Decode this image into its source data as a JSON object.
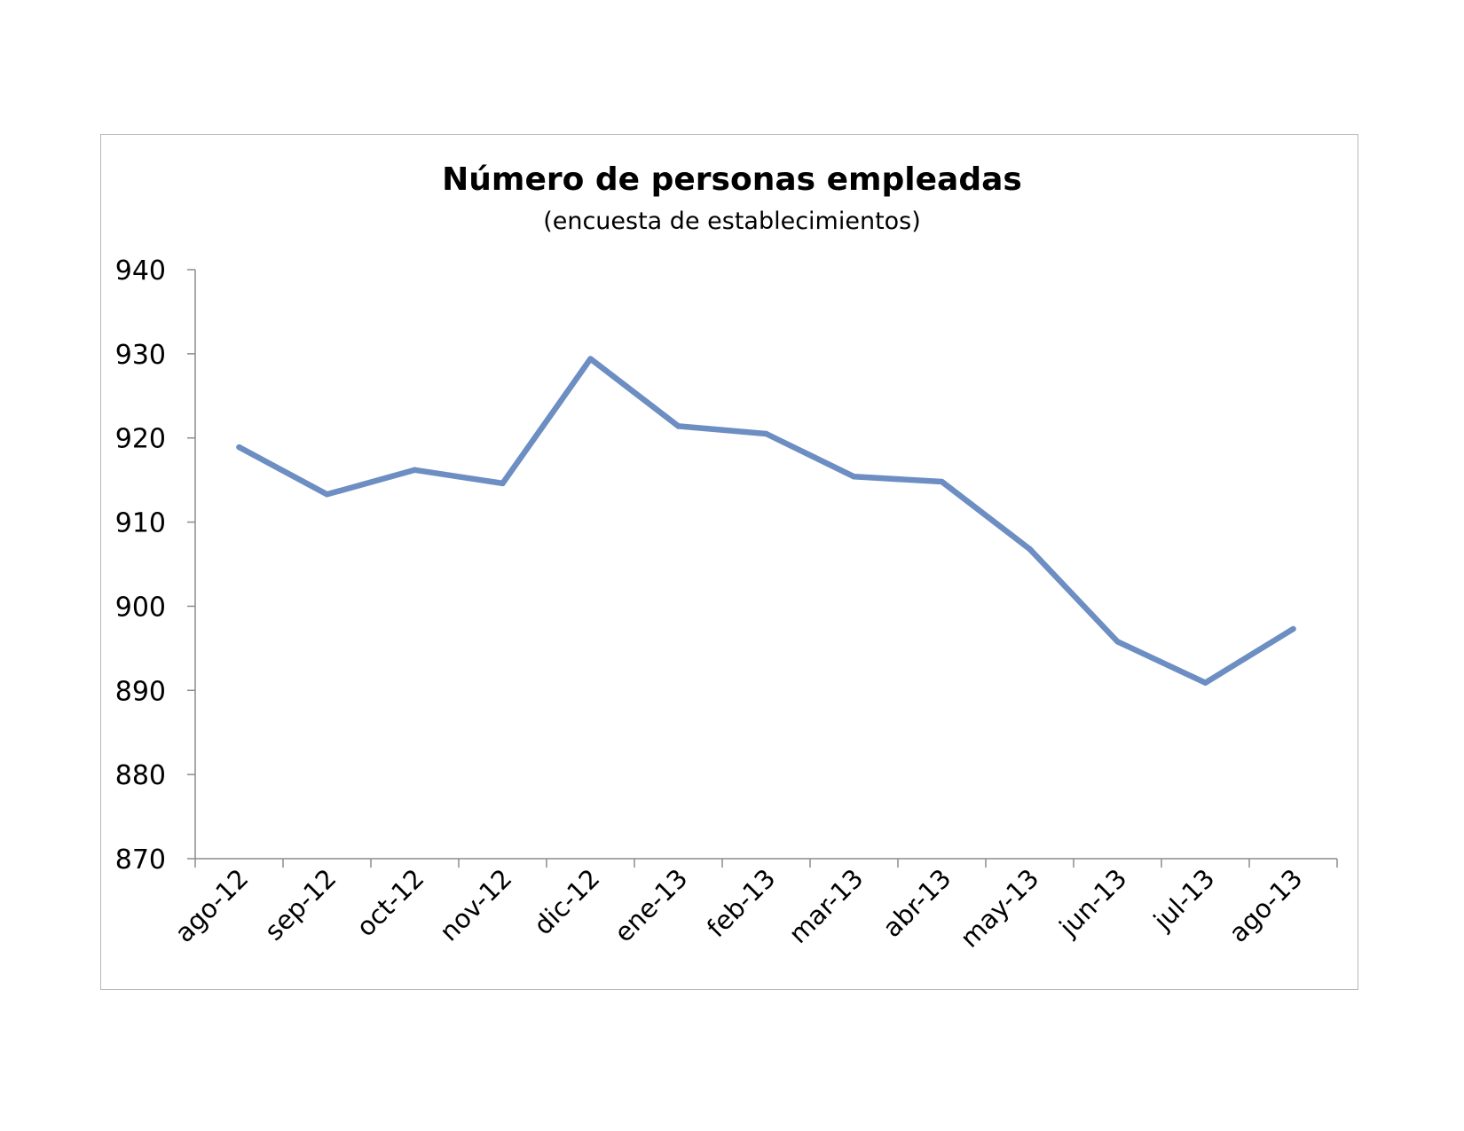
{
  "chart_data": {
    "type": "line",
    "title": "Número de personas empleadas",
    "subtitle": "(encuesta de establecimientos)",
    "xlabel": "",
    "ylabel": "",
    "categories": [
      "ago-12",
      "sep-12",
      "oct-12",
      "nov-12",
      "dic-12",
      "ene-13",
      "feb-13",
      "mar-13",
      "abr-13",
      "may-13",
      "jun-13",
      "jul-13",
      "ago-13"
    ],
    "series": [
      {
        "values": [
          918.9,
          913.3,
          916.2,
          914.6,
          929.4,
          921.4,
          920.5,
          915.4,
          914.8,
          906.8,
          895.8,
          890.9,
          897.3
        ]
      }
    ],
    "ylim": [
      870,
      940
    ],
    "yticks": [
      "870",
      "880",
      "890",
      "900",
      "910",
      "920",
      "930",
      "940"
    ],
    "grid": false,
    "legend": "none",
    "line_color": "#6d8ec2"
  }
}
